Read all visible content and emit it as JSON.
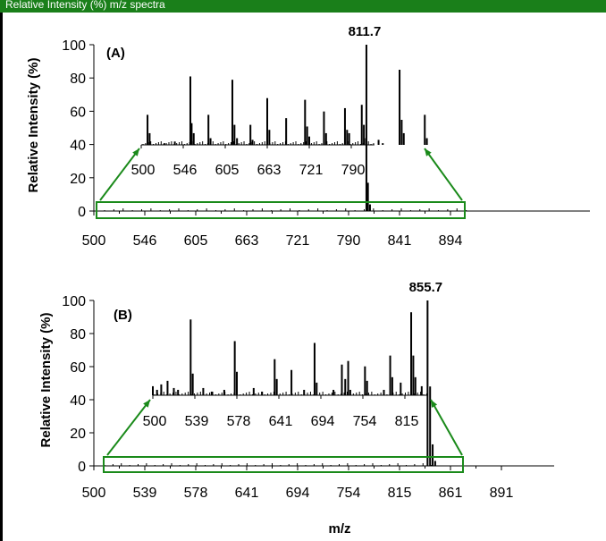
{
  "header": {
    "text": "Relative Intensity (%) m/z spectra"
  },
  "colors": {
    "header": "#1a7f1a",
    "highlight": "#1a8a1a",
    "bars": "#000000"
  },
  "xlabel": "m/z",
  "chart_data": [
    {
      "type": "bar",
      "panel_label": "(A)",
      "ylabel": "Relative Intensity (%)",
      "ylim": [
        0,
        100
      ],
      "yticks": [
        0,
        20,
        40,
        60,
        80,
        100
      ],
      "xticks": [
        "500",
        "546",
        "605",
        "663",
        "721",
        "790",
        "841",
        "894"
      ],
      "xlim_index": [
        0,
        7
      ],
      "main_peak": {
        "label": "811.7",
        "x_index": 5.35,
        "value": 100
      },
      "main_peaks": [
        {
          "x_index": 5.35,
          "value": 100
        },
        {
          "x_index": 5.38,
          "value": 17
        },
        {
          "x_index": 5.42,
          "value": 4
        }
      ],
      "inset": {
        "xticks": [
          "500",
          "546",
          "605",
          "663",
          "721",
          "790"
        ],
        "y_baseline": 40,
        "peaks": [
          {
            "x_index": 0.15,
            "value": 58
          },
          {
            "x_index": 0.2,
            "value": 47
          },
          {
            "x_index": 0.55,
            "value": 41
          },
          {
            "x_index": 0.8,
            "value": 42
          },
          {
            "x_index": 1.17,
            "value": 81
          },
          {
            "x_index": 1.2,
            "value": 53
          },
          {
            "x_index": 1.25,
            "value": 47
          },
          {
            "x_index": 1.6,
            "value": 58
          },
          {
            "x_index": 1.65,
            "value": 44
          },
          {
            "x_index": 2.17,
            "value": 79
          },
          {
            "x_index": 2.22,
            "value": 52
          },
          {
            "x_index": 2.28,
            "value": 44
          },
          {
            "x_index": 2.6,
            "value": 52
          },
          {
            "x_index": 2.65,
            "value": 43
          },
          {
            "x_index": 3.0,
            "value": 68
          },
          {
            "x_index": 3.05,
            "value": 49
          },
          {
            "x_index": 3.45,
            "value": 56
          },
          {
            "x_index": 3.9,
            "value": 67
          },
          {
            "x_index": 3.95,
            "value": 51
          },
          {
            "x_index": 4.0,
            "value": 45
          },
          {
            "x_index": 4.35,
            "value": 60
          },
          {
            "x_index": 4.4,
            "value": 47
          },
          {
            "x_index": 4.85,
            "value": 62
          },
          {
            "x_index": 4.9,
            "value": 49
          },
          {
            "x_index": 4.95,
            "value": 47
          },
          {
            "x_index": 5.25,
            "value": 64
          },
          {
            "x_index": 5.3,
            "value": 52
          },
          {
            "x_index": 5.35,
            "value": 44
          },
          {
            "x_index": 5.65,
            "value": 43
          },
          {
            "x_index": 5.75,
            "value": 41
          },
          {
            "x_index": 6.15,
            "value": 85
          },
          {
            "x_index": 6.2,
            "value": 55
          },
          {
            "x_index": 6.25,
            "value": 47
          },
          {
            "x_index": 6.75,
            "value": 58
          },
          {
            "x_index": 6.8,
            "value": 44
          }
        ]
      }
    },
    {
      "type": "bar",
      "panel_label": "(B)",
      "ylabel": "Relative Intensity (%)",
      "ylim": [
        0,
        100
      ],
      "yticks": [
        0,
        20,
        40,
        60,
        80,
        100
      ],
      "xticks": [
        "500",
        "539",
        "578",
        "641",
        "694",
        "754",
        "815",
        "861",
        "891"
      ],
      "xlim_index": [
        0,
        8
      ],
      "main_peak": {
        "label": "855.7",
        "x_index": 6.55,
        "value": 100
      },
      "main_peaks": [
        {
          "x_index": 6.55,
          "value": 100
        },
        {
          "x_index": 6.6,
          "value": 48
        },
        {
          "x_index": 6.65,
          "value": 13
        },
        {
          "x_index": 6.7,
          "value": 3
        }
      ],
      "inset": {
        "xticks": [
          "500",
          "539",
          "578",
          "641",
          "694",
          "754",
          "815"
        ],
        "y_baseline": 42,
        "peaks": [
          {
            "x_index": 0.0,
            "value": 47
          },
          {
            "x_index": 0.1,
            "value": 45
          },
          {
            "x_index": 0.2,
            "value": 48
          },
          {
            "x_index": 0.35,
            "value": 50
          },
          {
            "x_index": 0.5,
            "value": 46
          },
          {
            "x_index": 0.6,
            "value": 45
          },
          {
            "x_index": 0.9,
            "value": 84
          },
          {
            "x_index": 0.95,
            "value": 54
          },
          {
            "x_index": 1.2,
            "value": 46
          },
          {
            "x_index": 1.4,
            "value": 44
          },
          {
            "x_index": 1.7,
            "value": 45
          },
          {
            "x_index": 1.95,
            "value": 72
          },
          {
            "x_index": 2.0,
            "value": 55
          },
          {
            "x_index": 2.4,
            "value": 46
          },
          {
            "x_index": 2.6,
            "value": 44
          },
          {
            "x_index": 2.9,
            "value": 62
          },
          {
            "x_index": 2.95,
            "value": 51
          },
          {
            "x_index": 3.3,
            "value": 56
          },
          {
            "x_index": 3.6,
            "value": 45
          },
          {
            "x_index": 3.85,
            "value": 71
          },
          {
            "x_index": 3.9,
            "value": 49
          },
          {
            "x_index": 4.3,
            "value": 45
          },
          {
            "x_index": 4.5,
            "value": 59
          },
          {
            "x_index": 4.58,
            "value": 51
          },
          {
            "x_index": 4.65,
            "value": 61
          },
          {
            "x_index": 4.7,
            "value": 45
          },
          {
            "x_index": 5.05,
            "value": 58
          },
          {
            "x_index": 5.1,
            "value": 50
          },
          {
            "x_index": 5.5,
            "value": 45
          },
          {
            "x_index": 5.65,
            "value": 64
          },
          {
            "x_index": 5.7,
            "value": 52
          },
          {
            "x_index": 5.9,
            "value": 49
          },
          {
            "x_index": 6.15,
            "value": 88
          },
          {
            "x_index": 6.2,
            "value": 64
          },
          {
            "x_index": 6.25,
            "value": 52
          },
          {
            "x_index": 6.4,
            "value": 47
          }
        ]
      }
    }
  ]
}
